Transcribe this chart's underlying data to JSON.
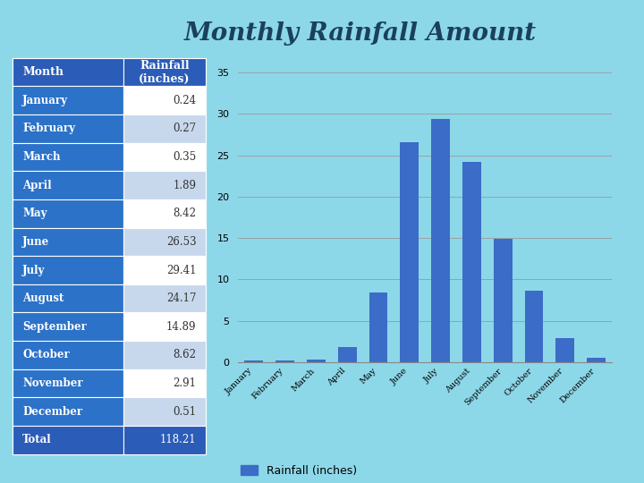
{
  "title": "Monthly Rainfall Amount",
  "months": [
    "January",
    "February",
    "March",
    "April",
    "May",
    "June",
    "July",
    "August",
    "September",
    "October",
    "November",
    "December"
  ],
  "values": [
    0.24,
    0.27,
    0.35,
    1.89,
    8.42,
    26.53,
    29.41,
    24.17,
    14.89,
    8.62,
    2.91,
    0.51
  ],
  "table_months": [
    "January",
    "February",
    "March",
    "April",
    "May",
    "June",
    "July",
    "August",
    "September",
    "October",
    "November",
    "December",
    "Total"
  ],
  "table_values": [
    "0.24",
    "0.27",
    "0.35",
    "1.89",
    "8.42",
    "26.53",
    "29.41",
    "24.17",
    "14.89",
    "8.62",
    "2.91",
    "0.51",
    "118.21"
  ],
  "bar_color": "#3B6CC7",
  "bg_color": "#8DD8E8",
  "table_header_bg": "#2B5CB8",
  "table_header_fg": "#FFFFFF",
  "table_left_bg": "#2B72C8",
  "table_left_fg": "#FFFFFF",
  "table_right_odd_bg": "#FFFFFF",
  "table_right_even_bg": "#C8D8EC",
  "table_right_fg": "#333333",
  "table_total_bg": "#2B5CB8",
  "table_total_fg": "#FFFFFF",
  "legend_label": "Rainfall (inches)",
  "ylim": [
    0,
    35
  ],
  "yticks": [
    0,
    5,
    10,
    15,
    20,
    25,
    30,
    35
  ],
  "title_color": "#1A4060",
  "title_fontsize": 20,
  "grid_color": "#999999"
}
